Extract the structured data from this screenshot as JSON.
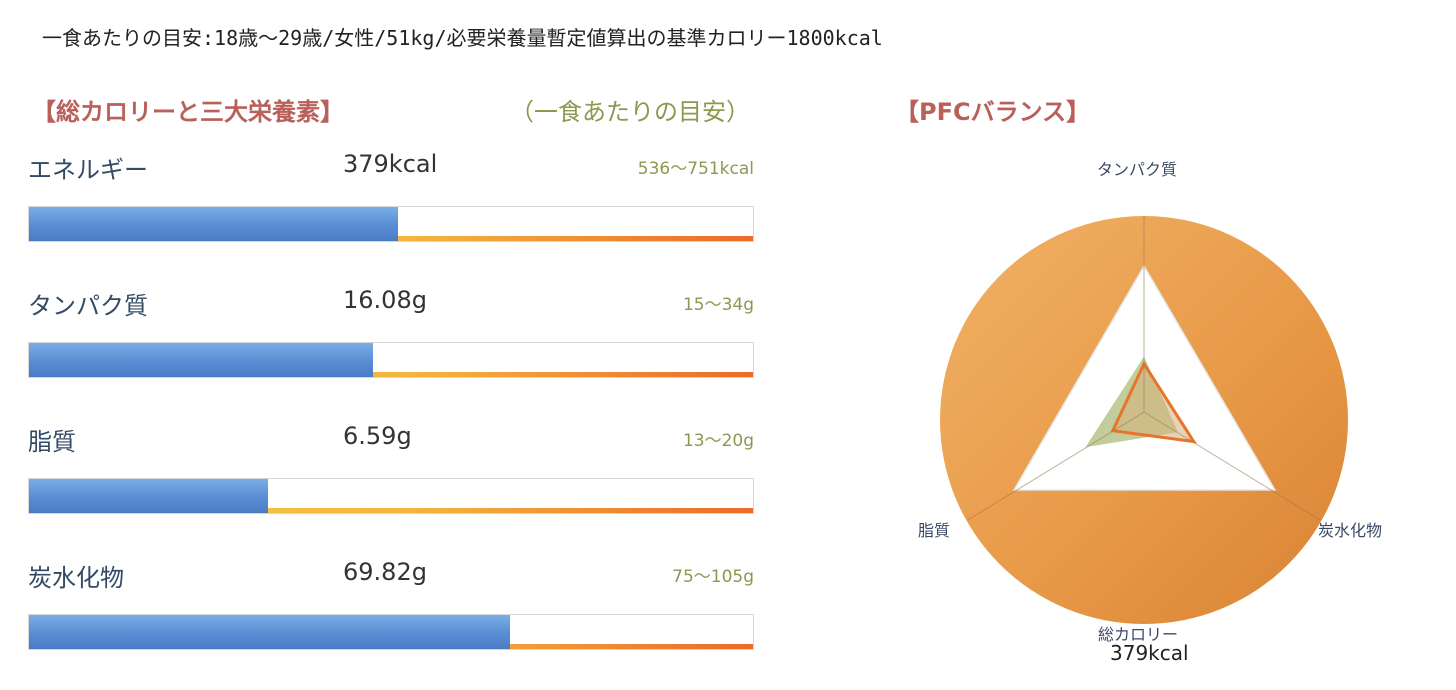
{
  "header": {
    "text": "一食あたりの目安:18歳〜29歳/女性/51kg/必要栄養量暫定値算出の基準カロリー1800kcal"
  },
  "section": {
    "title": "【総カロリーと三大栄養素】",
    "guide_label": "（一食あたりの目安）",
    "title_color": "#b9605a",
    "guide_color": "#8a9a50"
  },
  "nutrients": [
    {
      "name": "エネルギー",
      "value": "379kcal",
      "range": "536〜751kcal",
      "fill": 0.51
    },
    {
      "name": "タンパク質",
      "value": "16.08g",
      "range": "15〜34g",
      "fill": 0.475
    },
    {
      "name": "脂質",
      "value": "6.59g",
      "range": "13〜20g",
      "fill": 0.33
    },
    {
      "name": "炭水化物",
      "value": "69.82g",
      "range": "75〜105g",
      "fill": 0.665
    }
  ],
  "pfc": {
    "title": "【PFCバランス】",
    "axes": {
      "protein": "タンパク質",
      "carb": "炭水化物",
      "fat": "脂質"
    },
    "total_label": "総カロリー",
    "total_value": "379kcal",
    "actual": {
      "protein": 0.33,
      "fat": 0.24,
      "carb": 0.38
    },
    "ideal": {
      "protein": 0.38,
      "fat": 0.45,
      "carb": 0.26
    },
    "colors": {
      "circle": "#e89a48",
      "actual_line": "#e8742c",
      "ideal_fill": "#b9c48a"
    }
  }
}
